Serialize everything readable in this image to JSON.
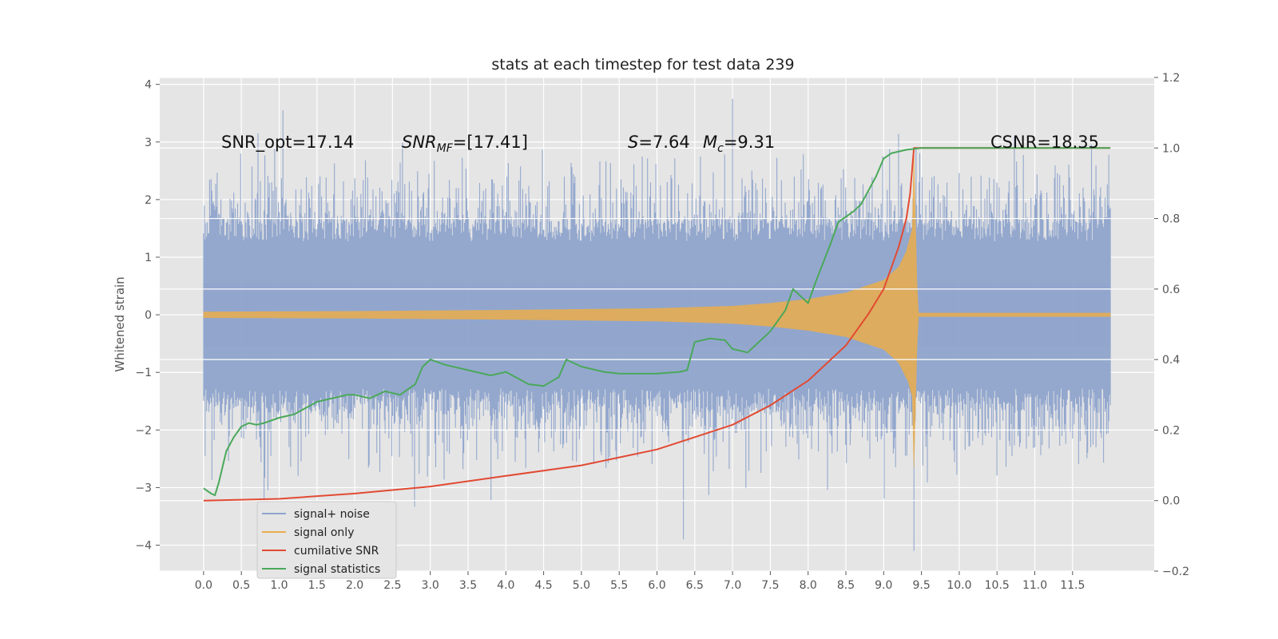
{
  "chart_data": {
    "type": "line",
    "title": "stats at each timestep for test data 239",
    "xlabel": "",
    "ylabel": "Whitened strain",
    "y2label": "",
    "xlim": [
      -0.58,
      12.58
    ],
    "ylim": [
      -4.45,
      4.12
    ],
    "y2lim": [
      -0.2,
      1.2
    ],
    "xticks": [
      "0.0",
      "0.5",
      "1.0",
      "1.5",
      "2.0",
      "2.5",
      "3.0",
      "3.5",
      "4.0",
      "4.5",
      "5.0",
      "5.5",
      "6.0",
      "6.5",
      "7.0",
      "7.5",
      "8.0",
      "8.5",
      "9.0",
      "9.5",
      "10.0",
      "10.5",
      "11.0",
      "11.5"
    ],
    "yticks": [
      "4",
      "3",
      "2",
      "1",
      "0",
      "−1",
      "−2",
      "−3",
      "−4"
    ],
    "y2ticks": [
      "1.2",
      "1.0",
      "0.8",
      "0.6",
      "0.4",
      "0.2",
      "0.0",
      "−0.2"
    ],
    "grid": true,
    "legend_position": "lower-left",
    "annotations": {
      "snr_opt": "SNR_opt=17.14",
      "snr_mf_var": "SNR",
      "snr_mf_sub": "MF",
      "snr_mf_val": "=[17.41]",
      "s_var": "S",
      "s_val": "=7.64",
      "mc_var": "M",
      "mc_sub": "c",
      "mc_val": "=9.31",
      "csnr": "CSNR=18.35"
    },
    "series": [
      {
        "name": "signal+ noise",
        "color": "#8fa4cc",
        "axis": "left",
        "kind": "noise",
        "duration": 12.0,
        "typical_abs_max": 1.7,
        "extreme_range": [
          -4.1,
          3.75
        ]
      },
      {
        "name": "signal only",
        "color": "#e8ad4f",
        "axis": "left",
        "kind": "chirp",
        "merger_time": 9.4,
        "envelope_x": [
          0.0,
          2.0,
          4.0,
          6.0,
          7.0,
          7.5,
          8.0,
          8.5,
          9.0,
          9.2,
          9.3,
          9.38,
          9.4,
          9.45,
          12.0
        ],
        "envelope_y": [
          0.05,
          0.06,
          0.08,
          0.11,
          0.15,
          0.2,
          0.27,
          0.38,
          0.6,
          0.83,
          1.1,
          1.5,
          2.8,
          0.03,
          0.03
        ]
      },
      {
        "name": "cumilative SNR",
        "color": "#e24a33",
        "axis": "right",
        "x": [
          0.0,
          1.0,
          2.0,
          3.0,
          4.0,
          5.0,
          6.0,
          6.5,
          7.0,
          7.5,
          8.0,
          8.5,
          8.8,
          9.0,
          9.2,
          9.3,
          9.35,
          9.4,
          9.45,
          12.0
        ],
        "y": [
          0.0,
          0.005,
          0.02,
          0.04,
          0.07,
          0.1,
          0.145,
          0.18,
          0.215,
          0.27,
          0.34,
          0.44,
          0.53,
          0.6,
          0.72,
          0.8,
          0.87,
          1.0,
          1.0,
          1.0
        ]
      },
      {
        "name": "signal statistics",
        "color": "#4aa85a",
        "axis": "right",
        "x": [
          0.0,
          0.1,
          0.15,
          0.2,
          0.3,
          0.4,
          0.5,
          0.6,
          0.7,
          0.8,
          1.0,
          1.2,
          1.5,
          1.7,
          1.9,
          2.0,
          2.2,
          2.4,
          2.6,
          2.8,
          2.9,
          3.0,
          3.2,
          3.5,
          3.8,
          4.0,
          4.3,
          4.5,
          4.7,
          4.8,
          5.0,
          5.3,
          5.5,
          5.8,
          6.0,
          6.3,
          6.4,
          6.5,
          6.7,
          6.9,
          7.0,
          7.2,
          7.5,
          7.7,
          7.8,
          8.0,
          8.1,
          8.3,
          8.4,
          8.6,
          8.7,
          8.9,
          9.0,
          9.1,
          9.3,
          9.5,
          9.8,
          10.0,
          11.0,
          12.0
        ],
        "y": [
          0.035,
          0.02,
          0.015,
          0.05,
          0.14,
          0.18,
          0.21,
          0.22,
          0.215,
          0.22,
          0.235,
          0.245,
          0.28,
          0.29,
          0.3,
          0.3,
          0.29,
          0.31,
          0.3,
          0.33,
          0.38,
          0.4,
          0.385,
          0.37,
          0.355,
          0.365,
          0.33,
          0.325,
          0.35,
          0.4,
          0.38,
          0.365,
          0.36,
          0.36,
          0.36,
          0.365,
          0.37,
          0.45,
          0.46,
          0.455,
          0.43,
          0.42,
          0.48,
          0.54,
          0.6,
          0.56,
          0.62,
          0.73,
          0.79,
          0.82,
          0.84,
          0.92,
          0.97,
          0.985,
          0.995,
          1.0,
          1.0,
          1.0,
          1.0,
          1.0
        ]
      }
    ]
  }
}
